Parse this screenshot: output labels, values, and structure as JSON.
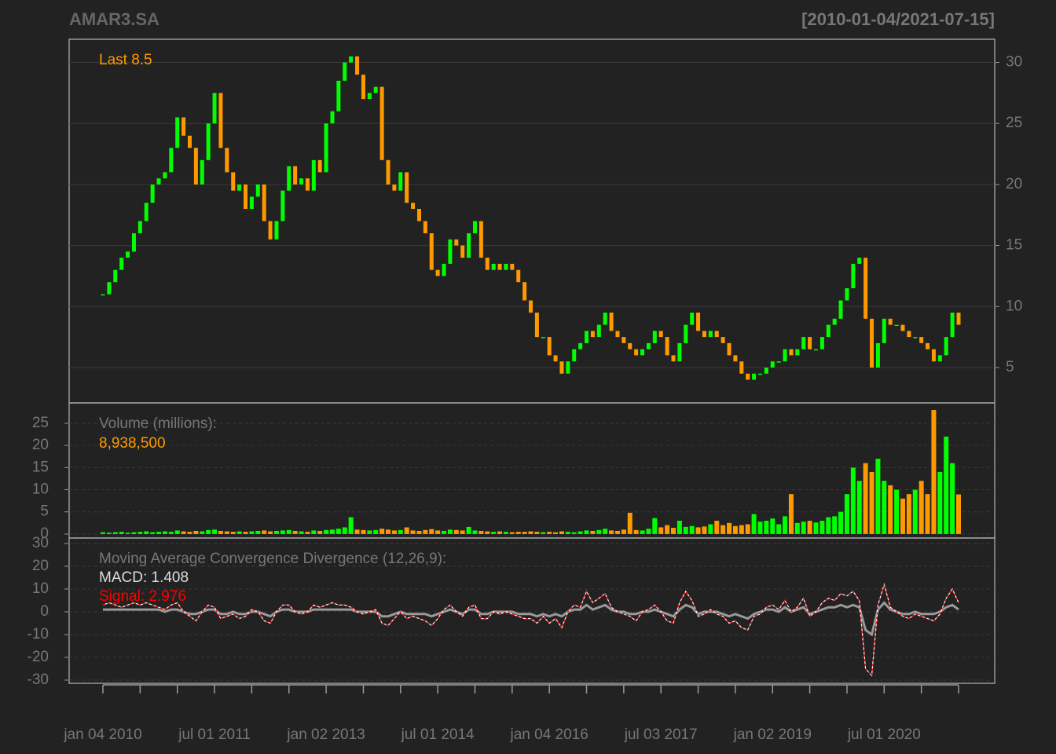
{
  "chart_data": [
    {
      "type": "candlestick",
      "title": "AMAR3.SA",
      "subtitle": "[2010-01-04/2021-07-15]",
      "annotations": [
        "Last 8.5"
      ],
      "up_color": "#00ff00",
      "down_color": "#ff9900",
      "values": [
        11,
        12,
        13,
        14,
        14.5,
        16,
        17,
        18.5,
        20,
        20.5,
        21,
        23,
        25.5,
        24,
        23,
        20,
        22,
        25,
        27.5,
        23,
        21,
        19.5,
        20,
        18,
        19,
        20,
        17,
        15.5,
        17,
        19.5,
        21.5,
        20,
        20.5,
        19.5,
        22,
        21,
        25,
        26,
        28.5,
        30,
        30.5,
        29,
        27,
        27.5,
        28,
        22,
        20,
        19.5,
        21,
        18.5,
        18,
        17,
        16,
        13,
        12.5,
        13.5,
        15.5,
        15,
        14,
        16,
        17,
        14,
        13,
        13.5,
        13,
        13.5,
        13,
        12,
        10.5,
        9.5,
        7.5,
        7.5,
        6,
        5.5,
        4.5,
        5.5,
        6.5,
        7,
        8,
        7.5,
        8.5,
        9.5,
        8,
        7.5,
        7,
        6.5,
        6,
        6.5,
        7,
        8,
        7.5,
        6,
        5.5,
        7,
        8.5,
        9.5,
        8,
        7.5,
        8,
        7.5,
        7,
        6,
        5.5,
        4.5,
        4,
        4.5,
        4.5,
        5,
        5.5,
        5.5,
        6.5,
        6,
        6.5,
        7.5,
        6.5,
        6.5,
        7.5,
        8.5,
        9,
        10.5,
        11.5,
        13.5,
        14,
        9,
        5,
        7,
        9,
        8.5,
        8.5,
        8,
        7.5,
        7.5,
        7,
        6.5,
        5.5,
        6,
        7.5,
        9.5,
        8.5
      ],
      "ylim": [
        2.1,
        31.9
      ],
      "yticks": [
        5,
        10,
        15,
        20,
        25,
        30
      ],
      "grid": true
    },
    {
      "type": "bar",
      "title": "Volume (millions):",
      "annotations": [
        "8,938,500"
      ],
      "up_color": "#00ff00",
      "down_color": "#ff9900",
      "values": [
        0.4,
        0.3,
        0.4,
        0.5,
        0.3,
        0.4,
        0.5,
        0.6,
        0.4,
        0.5,
        0.6,
        0.5,
        0.8,
        0.6,
        0.5,
        0.7,
        0.6,
        0.9,
        1.0,
        0.7,
        0.6,
        0.5,
        0.6,
        0.5,
        0.6,
        0.7,
        0.8,
        0.6,
        0.7,
        0.8,
        0.9,
        0.7,
        0.6,
        0.5,
        0.8,
        0.7,
        0.9,
        1.0,
        1.2,
        1.5,
        3.8,
        1.0,
        0.9,
        0.8,
        0.9,
        1.2,
        1.0,
        0.8,
        0.9,
        1.5,
        0.8,
        0.7,
        0.9,
        1.1,
        0.8,
        0.7,
        1.0,
        0.9,
        0.8,
        1.6,
        0.8,
        0.7,
        0.6,
        0.5,
        0.6,
        0.5,
        0.4,
        0.5,
        0.5,
        0.6,
        0.5,
        0.4,
        0.5,
        0.4,
        0.6,
        0.5,
        0.4,
        0.6,
        0.8,
        0.7,
        0.9,
        1.2,
        0.8,
        0.7,
        1.0,
        4.8,
        0.9,
        0.8,
        1.2,
        3.6,
        1.5,
        2.0,
        1.4,
        3.0,
        1.6,
        1.8,
        1.5,
        1.7,
        2.2,
        3.0,
        2.0,
        2.5,
        1.8,
        2.0,
        2.2,
        4.5,
        2.8,
        3.0,
        3.5,
        2.2,
        4.0,
        9.0,
        2.5,
        2.8,
        3.0,
        2.6,
        3.0,
        3.8,
        4.0,
        5.0,
        9,
        15,
        12,
        16,
        14,
        17,
        12,
        11,
        10,
        8,
        9,
        10,
        12,
        9,
        28,
        14,
        22,
        16,
        8.9385
      ],
      "ylim": [
        -0.9,
        29.6
      ],
      "yticks": [
        0,
        5,
        10,
        15,
        20,
        25
      ],
      "grid": true
    },
    {
      "type": "line",
      "title": "Moving Average Convergence Divergence (12,26,9):",
      "categories": [
        "jan 04 2010",
        null,
        null,
        null,
        null,
        null,
        null,
        null,
        null,
        null,
        null,
        null,
        null,
        null,
        null,
        null,
        null,
        null,
        "jul 01 2011",
        null,
        null,
        null,
        null,
        null,
        null,
        null,
        null,
        null,
        null,
        null,
        null,
        null,
        null,
        null,
        null,
        null,
        "jan 02 2013",
        null,
        null,
        null,
        null,
        null,
        null,
        null,
        null,
        null,
        null,
        null,
        null,
        null,
        null,
        null,
        null,
        null,
        "jul 01 2014",
        null,
        null,
        null,
        null,
        null,
        null,
        null,
        null,
        null,
        null,
        null,
        null,
        null,
        null,
        null,
        null,
        null,
        "jan 04 2016",
        null,
        null,
        null,
        null,
        null,
        null,
        null,
        null,
        null,
        null,
        null,
        null,
        null,
        null,
        null,
        null,
        null,
        "jul 03 2017",
        null,
        null,
        null,
        null,
        null,
        null,
        null,
        null,
        null,
        null,
        null,
        null,
        null,
        null,
        null,
        null,
        null,
        "jan 02 2019",
        null,
        null,
        null,
        null,
        null,
        null,
        null,
        null,
        null,
        null,
        null,
        null,
        null,
        null,
        null,
        null,
        null,
        "jul 01 2020",
        null,
        null,
        null,
        null,
        null,
        null,
        null,
        null,
        null,
        null,
        null,
        null
      ],
      "series": [
        {
          "name": "MACD: 1.408",
          "color": "#999999",
          "values": [
            1,
            1,
            1,
            1,
            1,
            1,
            1,
            1,
            1,
            1,
            0,
            1,
            1,
            0,
            -1,
            -1,
            0,
            1,
            1,
            -1,
            -1,
            0,
            -1,
            -1,
            0,
            0,
            -1,
            -2,
            0,
            1,
            1,
            0,
            0,
            0,
            1,
            1,
            1,
            1,
            1,
            1,
            1,
            0,
            0,
            0,
            0,
            -2,
            -2,
            -1,
            0,
            -1,
            -1,
            -1,
            -1,
            -2,
            -1,
            0,
            1,
            0,
            -1,
            1,
            1,
            -1,
            -1,
            0,
            0,
            0,
            0,
            -1,
            -1,
            -1,
            -2,
            -1,
            -2,
            -1,
            -2,
            0,
            1,
            1,
            3,
            1,
            2,
            3,
            1,
            0,
            0,
            -1,
            -1,
            0,
            0,
            1,
            0,
            -1,
            -2,
            1,
            3,
            2,
            -1,
            0,
            0,
            0,
            -1,
            -2,
            -1,
            -2,
            -3,
            -1,
            0,
            1,
            1,
            0,
            2,
            0,
            1,
            2,
            -1,
            0,
            1,
            2,
            2,
            3,
            2,
            3,
            2,
            -8,
            -10,
            1,
            4,
            1,
            0,
            -1,
            -1,
            0,
            -1,
            -1,
            -1,
            0,
            2,
            3,
            1
          ]
        },
        {
          "name": "Signal: 2.976",
          "color": "#ff0000",
          "values": [
            3,
            4,
            3,
            2,
            3,
            4,
            3,
            4,
            3,
            2,
            1,
            3,
            4,
            0,
            -2,
            -4,
            0,
            3,
            2,
            -3,
            -2,
            -1,
            -3,
            -2,
            1,
            0,
            -4,
            -5,
            0,
            3,
            3,
            0,
            -1,
            0,
            3,
            2,
            3,
            4,
            3,
            3,
            2,
            0,
            -1,
            0,
            1,
            -5,
            -6,
            -3,
            0,
            -3,
            -2,
            -3,
            -4,
            -6,
            -3,
            1,
            3,
            0,
            -2,
            2,
            3,
            -3,
            -3,
            0,
            -1,
            0,
            -1,
            -2,
            -3,
            -3,
            -5,
            -2,
            -5,
            -3,
            -7,
            0,
            3,
            2,
            9,
            4,
            6,
            8,
            2,
            0,
            -1,
            -2,
            -4,
            0,
            1,
            3,
            0,
            -4,
            -5,
            4,
            9,
            5,
            -2,
            -1,
            1,
            -1,
            -2,
            -5,
            -4,
            -7,
            -8,
            -2,
            -1,
            2,
            3,
            1,
            5,
            0,
            2,
            6,
            -2,
            0,
            4,
            6,
            5,
            8,
            7,
            9,
            5,
            -25,
            -28,
            3,
            12,
            2,
            0,
            -2,
            -3,
            -1,
            -2,
            -3,
            -4,
            -1,
            6,
            10,
            4
          ]
        }
      ],
      "ylim": [
        -31.4,
        32.4
      ],
      "yticks": [
        -30,
        -20,
        -10,
        0,
        10,
        20,
        30
      ],
      "grid": true
    }
  ]
}
